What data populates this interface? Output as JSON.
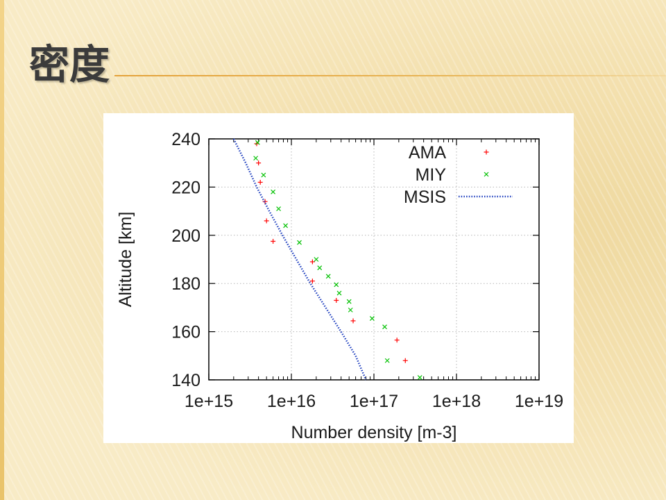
{
  "slide": {
    "title": "密度"
  },
  "chart_data": {
    "type": "scatter",
    "x_scale": "log",
    "xlim": [
      1000000000000000.0,
      1e+19
    ],
    "ylim": [
      140,
      240
    ],
    "grid": true,
    "xlabel": "Number density [m-3]",
    "ylabel": "Altitude [km]",
    "x_ticks": [
      "1e+15",
      "1e+16",
      "1e+17",
      "1e+18",
      "1e+19"
    ],
    "y_ticks": [
      "140",
      "160",
      "180",
      "200",
      "220",
      "240"
    ],
    "legend_position": "top-right",
    "series": [
      {
        "name": "AMA",
        "marker": "plus",
        "color": "#ff0000",
        "points": [
          {
            "x": 3800000000000000.0,
            "y": 238
          },
          {
            "x": 4000000000000000.0,
            "y": 230
          },
          {
            "x": 4200000000000000.0,
            "y": 222
          },
          {
            "x": 4800000000000000.0,
            "y": 214
          },
          {
            "x": 5000000000000000.0,
            "y": 206
          },
          {
            "x": 6000000000000000.0,
            "y": 197.5
          },
          {
            "x": 1.8e+16,
            "y": 189
          },
          {
            "x": 1.8e+16,
            "y": 181
          },
          {
            "x": 3.5e+16,
            "y": 173
          },
          {
            "x": 5.6e+16,
            "y": 164.5
          },
          {
            "x": 1.9e+17,
            "y": 156.5
          },
          {
            "x": 2.4e+17,
            "y": 148
          }
        ]
      },
      {
        "name": "MIY",
        "marker": "cross",
        "color": "#00c000",
        "points": [
          {
            "x": 3900000000000000.0,
            "y": 238.5
          },
          {
            "x": 3700000000000000.0,
            "y": 232
          },
          {
            "x": 4600000000000000.0,
            "y": 225
          },
          {
            "x": 6000000000000000.0,
            "y": 218
          },
          {
            "x": 7000000000000000.0,
            "y": 211
          },
          {
            "x": 8500000000000000.0,
            "y": 204
          },
          {
            "x": 1.25e+16,
            "y": 197
          },
          {
            "x": 2e+16,
            "y": 190
          },
          {
            "x": 2.2e+16,
            "y": 186.5
          },
          {
            "x": 2.8e+16,
            "y": 183
          },
          {
            "x": 3.5e+16,
            "y": 179.5
          },
          {
            "x": 3.8e+16,
            "y": 176
          },
          {
            "x": 5e+16,
            "y": 172.5
          },
          {
            "x": 5.2e+16,
            "y": 169
          },
          {
            "x": 9.5e+16,
            "y": 165.5
          },
          {
            "x": 1.35e+17,
            "y": 162
          },
          {
            "x": 1.45e+17,
            "y": 148
          },
          {
            "x": 3.6e+17,
            "y": 141
          }
        ]
      },
      {
        "name": "MSIS",
        "marker": "dotted-line",
        "color": "#1f3fbf",
        "points": [
          {
            "x": 2000000000000000.0,
            "y": 240
          },
          {
            "x": 2800000000000000.0,
            "y": 230
          },
          {
            "x": 3800000000000000.0,
            "y": 220
          },
          {
            "x": 5400000000000000.0,
            "y": 210
          },
          {
            "x": 7800000000000000.0,
            "y": 200
          },
          {
            "x": 1.15e+16,
            "y": 190
          },
          {
            "x": 1.7e+16,
            "y": 180
          },
          {
            "x": 2.6e+16,
            "y": 170
          },
          {
            "x": 4e+16,
            "y": 160
          },
          {
            "x": 6e+16,
            "y": 150
          },
          {
            "x": 8e+16,
            "y": 140
          }
        ]
      }
    ]
  }
}
